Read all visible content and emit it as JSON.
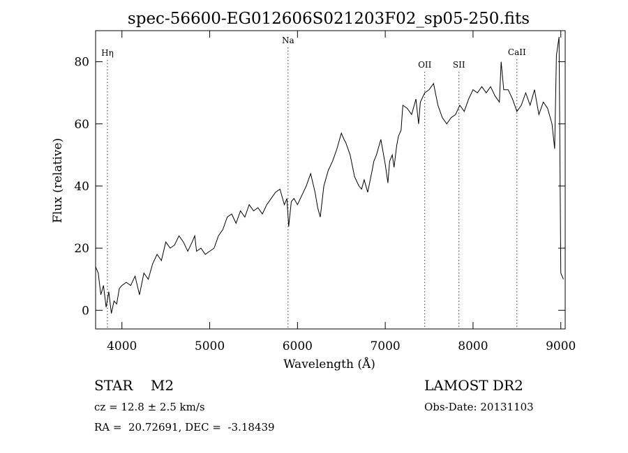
{
  "chart_data": {
    "type": "line",
    "title": "spec-56600-EG012606S021203F02_sp05-250.fits",
    "xlabel": "Wavelength (Å)",
    "ylabel": "Flux (relative)",
    "xlim": [
      3700,
      9050
    ],
    "ylim": [
      -6,
      90
    ],
    "xticks": [
      4000,
      5000,
      6000,
      7000,
      8000,
      9000
    ],
    "yticks": [
      0,
      20,
      40,
      60,
      80
    ],
    "grid": false,
    "series": [
      {
        "x": [
          3700,
          3730,
          3760,
          3790,
          3820,
          3850,
          3880,
          3910,
          3940,
          3970,
          4000,
          4050,
          4100,
          4150,
          4200,
          4250,
          4300,
          4350,
          4400,
          4450,
          4500,
          4550,
          4600,
          4650,
          4700,
          4750,
          4800,
          4830,
          4850,
          4900,
          4950,
          5000,
          5050,
          5100,
          5150,
          5200,
          5250,
          5300,
          5350,
          5400,
          5450,
          5500,
          5550,
          5600,
          5650,
          5700,
          5750,
          5800,
          5850,
          5880,
          5900,
          5930,
          5960,
          6000,
          6050,
          6100,
          6150,
          6200,
          6230,
          6260,
          6300,
          6350,
          6400,
          6450,
          6500,
          6530,
          6550,
          6600,
          6650,
          6700,
          6730,
          6760,
          6800,
          6850,
          6870,
          6900,
          6950,
          7000,
          7030,
          7050,
          7080,
          7100,
          7130,
          7150,
          7180,
          7200,
          7250,
          7300,
          7350,
          7380,
          7400,
          7450,
          7500,
          7550,
          7600,
          7650,
          7700,
          7750,
          7800,
          7850,
          7900,
          7950,
          8000,
          8050,
          8100,
          8150,
          8200,
          8250,
          8300,
          8320,
          8350,
          8400,
          8450,
          8500,
          8550,
          8600,
          8650,
          8700,
          8750,
          8800,
          8850,
          8900,
          8930,
          8950,
          8980,
          9000,
          9030
        ],
        "y": [
          14,
          12,
          5,
          8,
          1,
          6,
          -1,
          3,
          2,
          7,
          8,
          9,
          8,
          11,
          5,
          12,
          10,
          15,
          18,
          16,
          22,
          20,
          21,
          24,
          22,
          19,
          22,
          24,
          19,
          20,
          18,
          19,
          20,
          24,
          26,
          30,
          31,
          28,
          32,
          30,
          34,
          32,
          33,
          31,
          34,
          36,
          38,
          39,
          34,
          36,
          27,
          35,
          36,
          34,
          37,
          40,
          44,
          38,
          33,
          30,
          40,
          45,
          48,
          52,
          57,
          55,
          54,
          50,
          43,
          40,
          39,
          42,
          38,
          45,
          48,
          50,
          55,
          47,
          41,
          48,
          50,
          46,
          53,
          56,
          58,
          66,
          65,
          63,
          68,
          60,
          67,
          70,
          71,
          73,
          66,
          62,
          60,
          62,
          63,
          66,
          64,
          68,
          71,
          70,
          72,
          70,
          72,
          69,
          67,
          80,
          71,
          71,
          68,
          64,
          66,
          70,
          66,
          71,
          63,
          67,
          65,
          60,
          52,
          82,
          88,
          12,
          10
        ]
      }
    ],
    "annotations": [
      {
        "label": "Hη",
        "x": 3835
      },
      {
        "label": "Na",
        "x": 5893
      },
      {
        "label": "OII",
        "x": 7450
      },
      {
        "label": "SII",
        "x": 7840
      },
      {
        "label": "CaII",
        "x": 8500
      }
    ]
  },
  "info": {
    "class_line": "STAR    M2",
    "cz_line": "cz = 12.8 ± 2.5 km/s",
    "coords_line": "RA =  20.72691, DEC =  -3.18439",
    "survey": "LAMOST DR2",
    "obs_date": "Obs-Date: 20131103"
  }
}
